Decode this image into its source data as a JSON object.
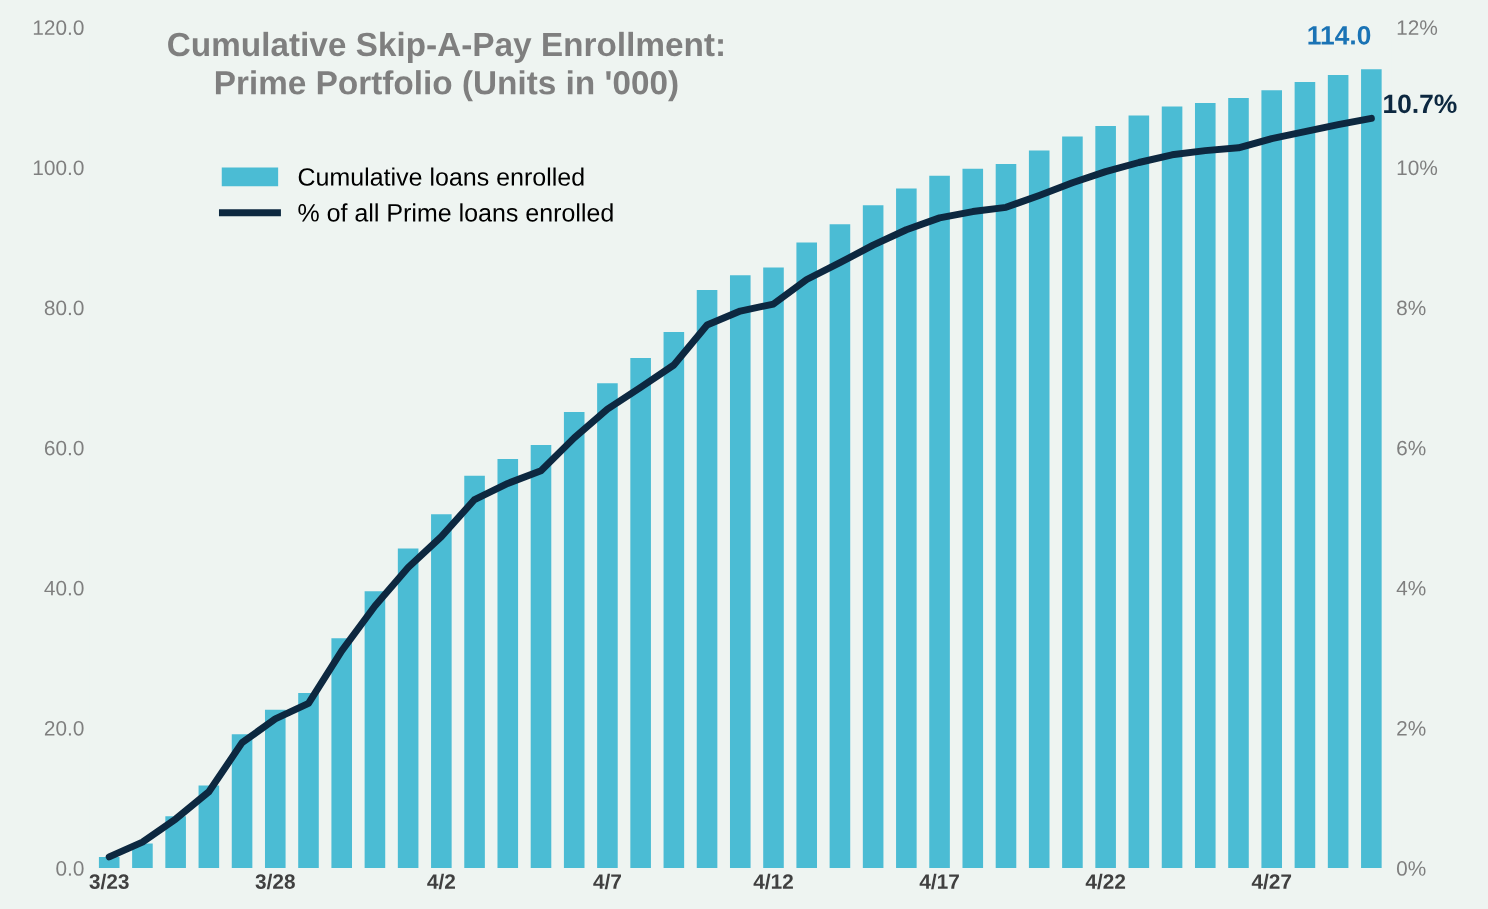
{
  "chart_data": {
    "type": "bar",
    "title": "Cumulative Skip-A-Pay Enrollment:\nPrime Portfolio (Units in '000)",
    "categories": [
      "3/23",
      null,
      null,
      null,
      null,
      "3/28",
      null,
      null,
      null,
      null,
      "4/2",
      null,
      null,
      null,
      null,
      "4/7",
      null,
      null,
      null,
      null,
      "4/12",
      null,
      null,
      null,
      null,
      "4/17",
      null,
      null,
      null,
      null,
      "4/22",
      null,
      null,
      null,
      null,
      "4/27",
      null,
      null,
      null
    ],
    "series": [
      {
        "name": "Cumulative loans enrolled",
        "color": "#4bbcd4",
        "values": [
          1.6,
          3.5,
          7.4,
          11.8,
          19.1,
          22.6,
          25.0,
          32.8,
          39.5,
          45.6,
          50.5,
          56.0,
          58.4,
          60.4,
          65.1,
          69.2,
          72.8,
          76.5,
          82.5,
          84.6,
          85.7,
          89.3,
          91.9,
          94.6,
          97.0,
          98.8,
          99.8,
          100.5,
          102.4,
          104.4,
          105.9,
          107.4,
          108.7,
          109.2,
          109.9,
          111.0,
          112.2,
          113.2,
          114.0
        ],
        "value_labels": [
          null,
          null,
          null,
          null,
          null,
          null,
          null,
          null,
          null,
          null,
          null,
          null,
          null,
          null,
          null,
          null,
          null,
          null,
          null,
          null,
          null,
          null,
          null,
          null,
          null,
          null,
          null,
          null,
          null,
          null,
          null,
          null,
          null,
          null,
          null,
          null,
          null,
          null,
          "114.0"
        ]
      },
      {
        "name": "% of all Prime loans enrolled",
        "type": "line",
        "axis": "y2",
        "color": "#0d2840",
        "values": [
          0.16,
          0.37,
          0.7,
          1.09,
          1.79,
          2.13,
          2.35,
          3.1,
          3.74,
          4.29,
          4.73,
          5.26,
          5.49,
          5.67,
          6.14,
          6.55,
          6.86,
          7.18,
          7.75,
          7.95,
          8.05,
          8.4,
          8.64,
          8.89,
          9.11,
          9.28,
          9.37,
          9.43,
          9.6,
          9.78,
          9.94,
          10.07,
          10.18,
          10.24,
          10.28,
          10.41,
          10.51,
          10.61,
          10.7
        ],
        "value_labels": [
          null,
          null,
          null,
          null,
          null,
          null,
          null,
          null,
          null,
          null,
          null,
          null,
          null,
          null,
          null,
          null,
          null,
          null,
          null,
          null,
          null,
          null,
          null,
          null,
          null,
          null,
          null,
          null,
          null,
          null,
          null,
          null,
          null,
          null,
          null,
          null,
          null,
          null,
          "10.7%"
        ]
      }
    ],
    "ylim": [
      0,
      120
    ],
    "yticks": [
      {
        "value": 0,
        "label": "0.0"
      },
      {
        "value": 20,
        "label": "20.0"
      },
      {
        "value": 40,
        "label": "40.0"
      },
      {
        "value": 60,
        "label": "60.0"
      },
      {
        "value": 80,
        "label": "80.0"
      },
      {
        "value": 100,
        "label": "100.0"
      },
      {
        "value": 120,
        "label": "120.0"
      }
    ],
    "y2lim": [
      0,
      12
    ],
    "y2ticks": [
      {
        "value": 0,
        "label": "0%"
      },
      {
        "value": 2,
        "label": "2%"
      },
      {
        "value": 4,
        "label": "4%"
      },
      {
        "value": 6,
        "label": "6%"
      },
      {
        "value": 8,
        "label": "8%"
      },
      {
        "value": 10,
        "label": "10%"
      },
      {
        "value": 12,
        "label": "12%"
      }
    ],
    "grid": false,
    "legend": "top left",
    "marker": "none",
    "line_style": "solid"
  }
}
